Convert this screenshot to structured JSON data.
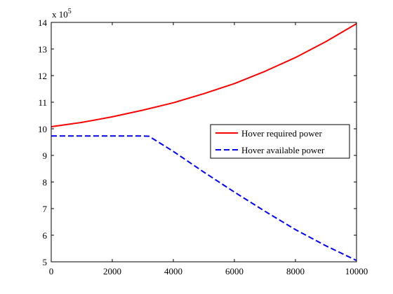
{
  "chart_data": {
    "type": "line",
    "title": "",
    "xlabel": "",
    "ylabel": "",
    "xlim": [
      0,
      10000
    ],
    "ylim": [
      5,
      14
    ],
    "y_multiplier": {
      "base": "x 10",
      "exponent": "5"
    },
    "x_ticks": [
      0,
      2000,
      4000,
      6000,
      8000,
      10000
    ],
    "y_ticks": [
      5,
      6,
      7,
      8,
      9,
      10,
      11,
      12,
      13,
      14
    ],
    "grid": false,
    "legend_position": "right",
    "series": [
      {
        "name": "Hover required power",
        "color": "#ff0000",
        "style": "solid",
        "x": [
          0,
          1000,
          2000,
          3000,
          4000,
          5000,
          6000,
          7000,
          8000,
          9000,
          10000
        ],
        "y": [
          10.08,
          10.24,
          10.45,
          10.7,
          10.98,
          11.32,
          11.7,
          12.16,
          12.68,
          13.28,
          13.95
        ]
      },
      {
        "name": "Hover available power",
        "color": "#0000ff",
        "style": "dashed",
        "x": [
          0,
          1000,
          2000,
          3000,
          3200,
          4000,
          5000,
          6000,
          7000,
          8000,
          9000,
          10000
        ],
        "y": [
          9.73,
          9.73,
          9.73,
          9.73,
          9.72,
          9.15,
          8.37,
          7.62,
          6.9,
          6.21,
          5.6,
          5.05
        ]
      }
    ]
  }
}
